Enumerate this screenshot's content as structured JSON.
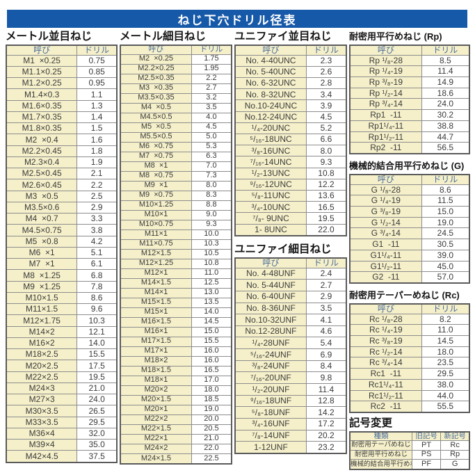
{
  "page_title": "ねじ下穴ドリル径表",
  "col_headers": {
    "name": "呼び",
    "drill": "ドリル"
  },
  "tables": {
    "metric_coarse": {
      "title": "メートル並目ねじ",
      "rows": [
        [
          "M1  ×0.25",
          "0.75"
        ],
        [
          "M1.1×0.25",
          "0.85"
        ],
        [
          "M1.2×0.25",
          "0.95"
        ],
        [
          "M1.4×0.3",
          "1.1"
        ],
        [
          "M1.6×0.35",
          "1.3"
        ],
        [
          "M1.7×0.35",
          "1.4"
        ],
        [
          "M1.8×0.35",
          "1.5"
        ],
        [
          "M2  ×0.4",
          "1.6"
        ],
        [
          "M2.2×0.45",
          "1.8"
        ],
        [
          "M2.3×0.4",
          "1.9"
        ],
        [
          "M2.5×0.45",
          "2.1"
        ],
        [
          "M2.6×0.45",
          "2.2"
        ],
        [
          "M3  ×0.5",
          "2.5"
        ],
        [
          "M3.5×0.6",
          "2.9"
        ],
        [
          "M4  ×0.7",
          "3.3"
        ],
        [
          "M4.5×0.75",
          "3.8"
        ],
        [
          "M5  ×0.8",
          "4.2"
        ],
        [
          "M6  ×1",
          "5.1"
        ],
        [
          "M7  ×1",
          "6.1"
        ],
        [
          "M8  ×1.25",
          "6.8"
        ],
        [
          "M9  ×1.25",
          "7.8"
        ],
        [
          "M10×1.5",
          "8.6"
        ],
        [
          "M11×1.5",
          "9.6"
        ],
        [
          "M12×1.75",
          "10.3"
        ],
        [
          "M14×2",
          "12.1"
        ],
        [
          "M16×2",
          "14.0"
        ],
        [
          "M18×2.5",
          "15.5"
        ],
        [
          "M20×2.5",
          "17.5"
        ],
        [
          "M22×2.5",
          "19.5"
        ],
        [
          "M24×3",
          "21.0"
        ],
        [
          "M27×3",
          "24.0"
        ],
        [
          "M30×3.5",
          "26.5"
        ],
        [
          "M33×3.5",
          "29.5"
        ],
        [
          "M36×4",
          "32.0"
        ],
        [
          "M39×4",
          "35.0"
        ],
        [
          "M42×4.5",
          "37.5"
        ]
      ]
    },
    "metric_fine": {
      "title": "メートル細目ねじ",
      "rows": [
        [
          "M2  ×0.25",
          "1.75"
        ],
        [
          "M2.2×0.25",
          "1.95"
        ],
        [
          "M2.5×0.35",
          "2.2"
        ],
        [
          "M3  ×0.35",
          "2.7"
        ],
        [
          "M3.5×0.35",
          "3.2"
        ],
        [
          "M4  ×0.5",
          "3.5"
        ],
        [
          "M4.5×0.5",
          "4.0"
        ],
        [
          "M5  ×0.5",
          "4.5"
        ],
        [
          "M5.5×0.5",
          "5.0"
        ],
        [
          "M6  ×0.75",
          "5.3"
        ],
        [
          "M7  ×0.75",
          "6.3"
        ],
        [
          "M8  ×1",
          "7.0"
        ],
        [
          "M8  ×0.75",
          "7.3"
        ],
        [
          "M9  ×1",
          "8.0"
        ],
        [
          "M9  ×0.75",
          "8.3"
        ],
        [
          "M10×1.25",
          "8.8"
        ],
        [
          "M10×1",
          "9.0"
        ],
        [
          "M10×0.75",
          "9.3"
        ],
        [
          "M11×1",
          "10.0"
        ],
        [
          "M11×0.75",
          "10.3"
        ],
        [
          "M12×1.5",
          "10.5"
        ],
        [
          "M12×1.25",
          "10.8"
        ],
        [
          "M12×1",
          "11.0"
        ],
        [
          "M14×1.5",
          "12.5"
        ],
        [
          "M14×1",
          "13.0"
        ],
        [
          "M15×1.5",
          "13.5"
        ],
        [
          "M15×1",
          "14.0"
        ],
        [
          "M16×1.5",
          "14.5"
        ],
        [
          "M16×1",
          "15.0"
        ],
        [
          "M17×1.5",
          "15.5"
        ],
        [
          "M17×1",
          "16.0"
        ],
        [
          "M18×2",
          "16.0"
        ],
        [
          "M18×1.5",
          "16.5"
        ],
        [
          "M18×1",
          "17.0"
        ],
        [
          "M20×2",
          "18.0"
        ],
        [
          "M20×1.5",
          "18.5"
        ],
        [
          "M20×1",
          "19.0"
        ],
        [
          "M22×2",
          "20.0"
        ],
        [
          "M22×1.5",
          "20.5"
        ],
        [
          "M22×1",
          "21.0"
        ],
        [
          "M24×2",
          "22.0"
        ],
        [
          "M24×1.5",
          "22.5"
        ]
      ]
    },
    "unified_coarse": {
      "title": "ユニファイ並目ねじ",
      "rows": [
        [
          "No. 4-40UNC",
          "2.3"
        ],
        [
          "No. 5-40UNC",
          "2.6"
        ],
        [
          "No. 6-32UNC",
          "2.8"
        ],
        [
          "No. 8-32UNC",
          "3.4"
        ],
        [
          "No.10-24UNC",
          "3.9"
        ],
        [
          "No.12-24UNC",
          "4.5"
        ],
        [
          "¹/₄-20UNC",
          "5.2"
        ],
        [
          "⁵/₁₆-18UNC",
          "6.6"
        ],
        [
          "³/₈-16UNC",
          "8.0"
        ],
        [
          "⁷/₁₆-14UNC",
          "9.3"
        ],
        [
          "¹/₂-13UNC",
          "10.8"
        ],
        [
          "⁹/₁₆-12UNC",
          "12.2"
        ],
        [
          "⁵/₈-11UNC",
          "13.6"
        ],
        [
          "³/₄-10UNC",
          "16.5"
        ],
        [
          "⁷/₈- 9UNC",
          "19.5"
        ],
        [
          "1- 8UNC",
          "22.0"
        ]
      ]
    },
    "unified_fine": {
      "title": "ユニファイ細目ねじ",
      "rows": [
        [
          "No. 4-48UNF",
          "2.4"
        ],
        [
          "No. 5-44UNF",
          "2.7"
        ],
        [
          "No. 6-40UNF",
          "2.9"
        ],
        [
          "No. 8-36UNF",
          "3.5"
        ],
        [
          "No.10-32UNF",
          "4.1"
        ],
        [
          "No.12-28UNF",
          "4.6"
        ],
        [
          "¹/₄-28UNF",
          "5.4"
        ],
        [
          "⁵/₁₆-24UNF",
          "6.9"
        ],
        [
          "³/₈-24UNF",
          "8.4"
        ],
        [
          "⁷/₁₆-20UNF",
          "9.8"
        ],
        [
          "¹/₂-20UNF",
          "11.4"
        ],
        [
          "⁹/₁₆-18UNF",
          "12.8"
        ],
        [
          "⁵/₈-18UNF",
          "14.2"
        ],
        [
          "³/₄-16UNF",
          "17.2"
        ],
        [
          "⁷/₈-14UNF",
          "20.2"
        ],
        [
          "1-12UNF",
          "23.2"
        ]
      ]
    },
    "rp": {
      "title": "耐密用平行めねじ (Rp)",
      "rows": [
        [
          "Rp ¹/₈-28",
          "8.5"
        ],
        [
          "Rp ¹/₄-19",
          "11.4"
        ],
        [
          "Rp ³/₈-19",
          "14.9"
        ],
        [
          "Rp ¹/₂-14",
          "18.6"
        ],
        [
          "Rp ³/₄-14",
          "24.0"
        ],
        [
          "Rp1  -11",
          "30.2"
        ],
        [
          "Rp1¹/₄-11",
          "38.8"
        ],
        [
          "Rp1¹/₂-11",
          "44.7"
        ],
        [
          "Rp2  -11",
          "56.5"
        ]
      ]
    },
    "g": {
      "title": "機械的結合用平行めねじ (G)",
      "rows": [
        [
          "G ¹/₈-28",
          "8.6"
        ],
        [
          "G ¹/₄-19",
          "11.5"
        ],
        [
          "G ³/₈-19",
          "15.0"
        ],
        [
          "G ¹/₂-14",
          "19.0"
        ],
        [
          "G ³/₄-14",
          "24.5"
        ],
        [
          "G1  -11",
          "30.5"
        ],
        [
          "G1¹/₄-11",
          "39.0"
        ],
        [
          "G1¹/₂-11",
          "45.0"
        ],
        [
          "G2  -11",
          "57.0"
        ]
      ]
    },
    "rc": {
      "title": "耐密用テーパーめねじ (Rc)",
      "rows": [
        [
          "Rc ¹/₈-28",
          "8.2"
        ],
        [
          "Rc ¹/₄-19",
          "11.0"
        ],
        [
          "Rc ³/₈-19",
          "14.5"
        ],
        [
          "Rc ¹/₂-14",
          "18.0"
        ],
        [
          "Rc ³/₄-14",
          "23.5"
        ],
        [
          "Rc1  -11",
          "29.5"
        ],
        [
          "Rc1¹/₄-11",
          "38.0"
        ],
        [
          "Rc1¹/₂-11",
          "44.0"
        ],
        [
          "Rc2  -11",
          "55.5"
        ]
      ]
    }
  },
  "symbol_change": {
    "title": "記号変更",
    "headers": [
      "種類",
      "旧記号",
      "新記号"
    ],
    "rows": [
      [
        "耐密用テーパめねじ",
        "PT",
        "Rc"
      ],
      [
        "耐密用平行めねじ",
        "PS",
        "Rp"
      ],
      [
        "機械的結合用平行めねじ",
        "PF",
        "G"
      ]
    ]
  },
  "colors": {
    "banner_blue": "#1659a8",
    "cell_cream": "#f5f0ca",
    "header_text_blue": "#4a6b98"
  }
}
